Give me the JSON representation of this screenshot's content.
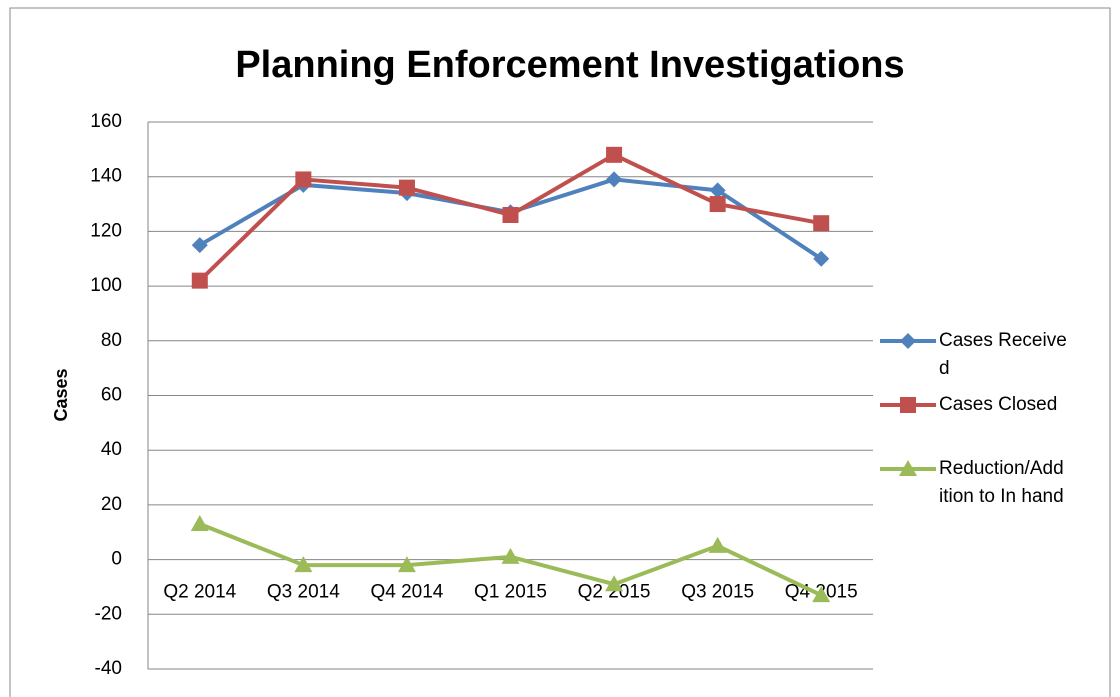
{
  "chart_data": {
    "type": "line",
    "title": "Planning Enforcement Investigations",
    "y_label": "Cases",
    "categories": [
      "Q2 2014",
      "Q3 2014",
      "Q4 2014",
      "Q1 2015",
      "Q2 2015",
      "Q3 2015",
      "Q4 2015"
    ],
    "series": [
      {
        "name": "Cases Received",
        "color": "#4f81bd",
        "marker": "diamond",
        "values": [
          115,
          137,
          134,
          127,
          139,
          135,
          110
        ]
      },
      {
        "name": "Cases Closed",
        "color": "#c0504d",
        "marker": "square",
        "values": [
          102,
          139,
          136,
          126,
          148,
          130,
          123
        ]
      },
      {
        "name": "Reduction/Addition to In hand",
        "color": "#9bbb59",
        "marker": "triangle",
        "values": [
          13,
          -2,
          -2,
          1,
          -9,
          5,
          -13
        ]
      }
    ],
    "ylim": [
      -40,
      160
    ],
    "yticks": [
      -40,
      -20,
      0,
      20,
      40,
      60,
      80,
      100,
      120,
      140,
      160
    ],
    "grid": true,
    "legend": "right"
  }
}
